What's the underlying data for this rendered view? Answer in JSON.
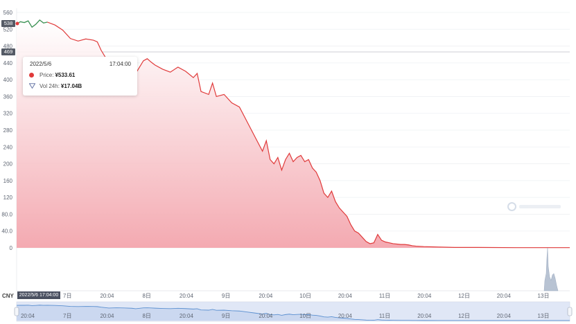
{
  "tooltip": {
    "date": "2022/5/6",
    "time": "17:04:00",
    "price_label": "Price:",
    "price_value": "¥533.61",
    "vol_label": "Vol 24h:",
    "vol_value": "¥17.04B"
  },
  "price_badges": {
    "current": "538",
    "hover": "469"
  },
  "currency": "CNY",
  "cursor_date": "2022/5/6 17:04:00",
  "colors": {
    "line": "#e03a3a",
    "line_start": "#2e9e5b",
    "fill_top": "#fde8ea",
    "fill_bottom": "#f3a5ad",
    "navigator": "#5a8fd0"
  },
  "chart_data": {
    "type": "area",
    "title": "",
    "xlabel": "",
    "ylabel": "",
    "ylim": [
      0,
      560
    ],
    "y_ticks": [
      "0",
      "40.0",
      "80.0",
      "120",
      "160",
      "200",
      "240",
      "280",
      "320",
      "360",
      "400",
      "440",
      "480",
      "520",
      "560"
    ],
    "x_ticks": [
      "20:04",
      "7日",
      "20:04",
      "8日",
      "20:04",
      "9日",
      "20:04",
      "10日",
      "20:04",
      "11日",
      "20:04",
      "12日",
      "20:04",
      "13日"
    ],
    "navigator_ticks": [
      "20:04",
      "7日",
      "20:04",
      "8日",
      "20:04",
      "9日",
      "20:04",
      "10日",
      "20:04",
      "11日",
      "20:04",
      "12日",
      "20:04",
      "13日"
    ],
    "x_range_days": [
      0,
      7.2
    ],
    "series": [
      {
        "x": [
          0,
          0.05,
          0.1,
          0.15,
          0.2,
          0.25,
          0.3,
          0.35,
          0.4,
          0.5,
          0.6,
          0.7,
          0.8,
          0.9,
          1.0,
          1.05,
          1.1,
          1.2,
          1.3,
          1.4,
          1.5,
          1.55,
          1.6,
          1.65,
          1.7,
          1.75,
          1.8,
          1.9,
          2.0,
          2.1,
          2.2,
          2.3,
          2.35,
          2.4,
          2.5,
          2.55,
          2.6,
          2.7,
          2.8,
          2.9,
          3.0,
          3.1,
          3.2,
          3.25,
          3.3,
          3.35,
          3.4,
          3.45,
          3.5,
          3.55,
          3.6,
          3.65,
          3.7,
          3.75,
          3.8,
          3.85,
          3.9,
          3.95,
          4.0,
          4.05,
          4.1,
          4.15,
          4.2,
          4.25,
          4.3,
          4.35,
          4.4,
          4.45,
          4.5,
          4.55,
          4.6,
          4.65,
          4.7,
          4.75,
          4.8,
          4.85,
          4.9,
          5.0,
          5.05,
          5.1,
          5.15,
          5.2,
          5.3,
          5.5,
          5.7,
          6.0,
          6.5,
          7.2
        ],
        "values": [
          533,
          538,
          536,
          540,
          525,
          532,
          542,
          535,
          537,
          530,
          518,
          498,
          492,
          497,
          494,
          490,
          470,
          440,
          450,
          442,
          432,
          415,
          430,
          445,
          450,
          442,
          435,
          425,
          418,
          430,
          420,
          405,
          415,
          372,
          365,
          392,
          360,
          365,
          345,
          335,
          300,
          265,
          230,
          255,
          210,
          200,
          215,
          185,
          210,
          225,
          205,
          215,
          220,
          205,
          210,
          190,
          180,
          160,
          130,
          120,
          135,
          110,
          95,
          85,
          75,
          55,
          40,
          35,
          25,
          15,
          10,
          12,
          32,
          18,
          14,
          12,
          10,
          8,
          8,
          7,
          5,
          4,
          3,
          2,
          1,
          1,
          0.5,
          0.5
        ]
      }
    ]
  }
}
